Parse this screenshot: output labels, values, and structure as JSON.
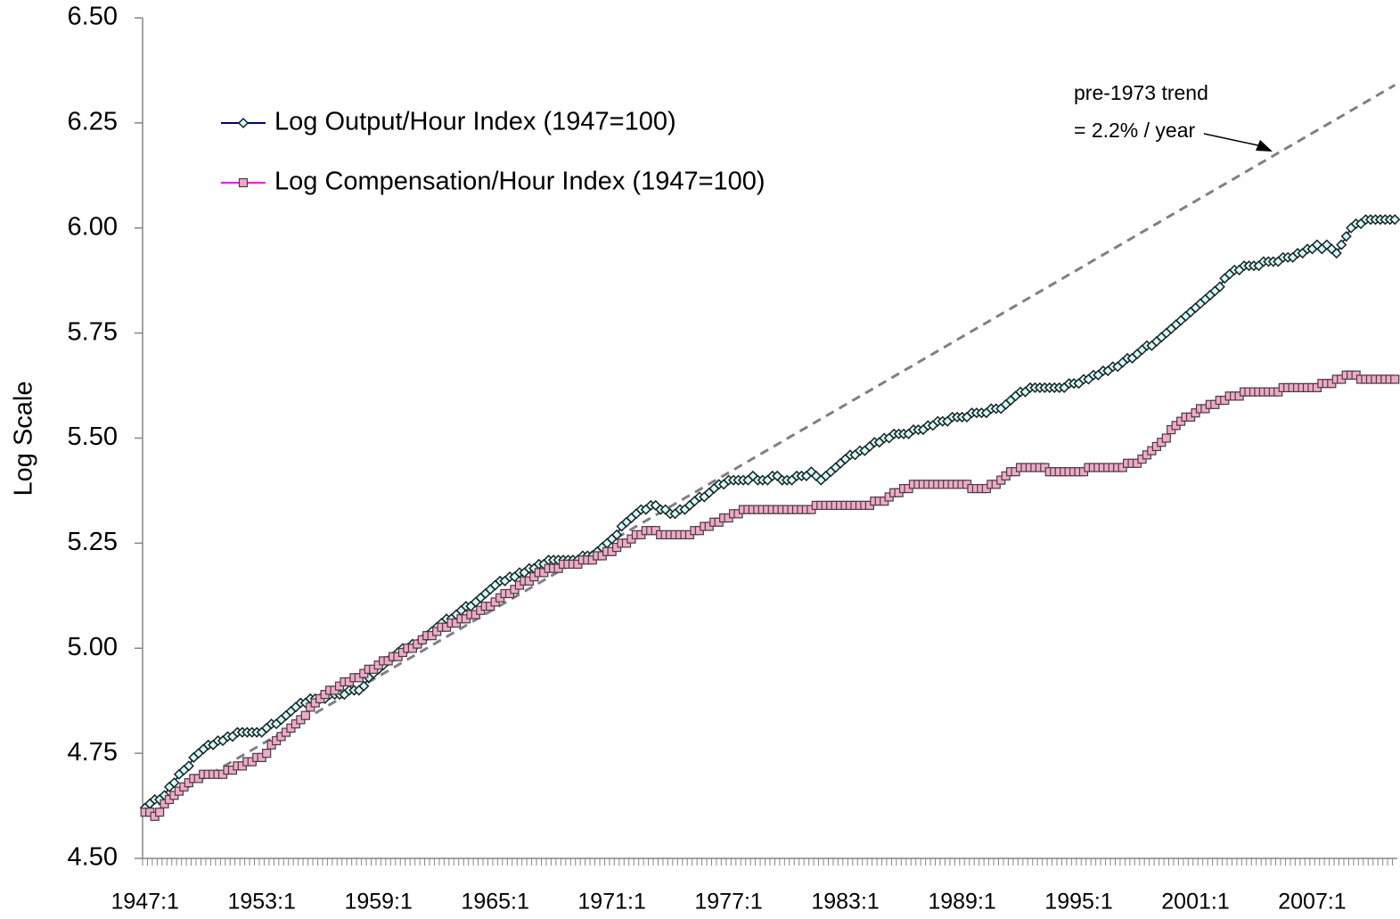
{
  "chart_data": {
    "type": "line",
    "y_axis_label": "Log Scale",
    "annotations": [
      "pre-1973 trend",
      "= 2.2% / year"
    ],
    "ylim": [
      4.5,
      6.5
    ],
    "yticks": [
      {
        "value": 4.5,
        "label": "4.50"
      },
      4.75,
      {
        "value": 5,
        "label": "5.00"
      },
      5.25,
      {
        "value": 5.5,
        "label": "5.50"
      },
      5.75,
      {
        "value": 6,
        "label": "6.00"
      },
      6.25,
      {
        "value": 6.5,
        "label": "6.50"
      }
    ],
    "grid": false,
    "legend": "top-left",
    "categories": [
      "1947:1",
      null,
      null,
      null,
      null,
      null,
      null,
      null,
      null,
      null,
      null,
      null,
      null,
      null,
      null,
      null,
      null,
      null,
      null,
      null,
      null,
      null,
      null,
      null,
      "1953:1",
      null,
      null,
      null,
      null,
      null,
      null,
      null,
      null,
      null,
      null,
      null,
      null,
      null,
      null,
      null,
      null,
      null,
      null,
      null,
      null,
      null,
      null,
      null,
      "1959:1",
      null,
      null,
      null,
      null,
      null,
      null,
      null,
      null,
      null,
      null,
      null,
      null,
      null,
      null,
      null,
      null,
      null,
      null,
      null,
      null,
      null,
      null,
      null,
      "1965:1",
      null,
      null,
      null,
      null,
      null,
      null,
      null,
      null,
      null,
      null,
      null,
      null,
      null,
      null,
      null,
      null,
      null,
      null,
      null,
      null,
      null,
      null,
      null,
      "1971:1",
      null,
      null,
      null,
      null,
      null,
      null,
      null,
      null,
      null,
      null,
      null,
      null,
      null,
      null,
      null,
      null,
      null,
      null,
      null,
      null,
      null,
      null,
      null,
      "1977:1",
      null,
      null,
      null,
      null,
      null,
      null,
      null,
      null,
      null,
      null,
      null,
      null,
      null,
      null,
      null,
      null,
      null,
      null,
      null,
      null,
      null,
      null,
      null,
      "1983:1",
      null,
      null,
      null,
      null,
      null,
      null,
      null,
      null,
      null,
      null,
      null,
      null,
      null,
      null,
      null,
      null,
      null,
      null,
      null,
      null,
      null,
      null,
      null,
      "1989:1",
      null,
      null,
      null,
      null,
      null,
      null,
      null,
      null,
      null,
      null,
      null,
      null,
      null,
      null,
      null,
      null,
      null,
      null,
      null,
      null,
      null,
      null,
      null,
      "1995:1",
      null,
      null,
      null,
      null,
      null,
      null,
      null,
      null,
      null,
      null,
      null,
      null,
      null,
      null,
      null,
      null,
      null,
      null,
      null,
      null,
      null,
      null,
      null,
      "2001:1",
      null,
      null,
      null,
      null,
      null,
      null,
      null,
      null,
      null,
      null,
      null,
      null,
      null,
      null,
      null,
      null,
      null,
      null,
      null,
      null,
      null,
      null,
      null,
      "2007:1",
      null,
      null,
      null,
      null,
      null,
      null,
      null,
      null,
      null,
      null,
      null,
      null,
      null,
      null,
      null,
      null,
      null
    ],
    "series": [
      {
        "name": "Log Output/Hour Index (1947=100)",
        "color": "#000080",
        "marker": "diamond",
        "marker_fill": "#ccffff",
        "values": [
          4.62,
          4.63,
          4.64,
          4.64,
          4.65,
          4.67,
          4.68,
          4.7,
          4.71,
          4.72,
          4.74,
          4.75,
          4.76,
          4.77,
          4.77,
          4.78,
          4.78,
          4.79,
          4.79,
          4.8,
          4.8,
          4.8,
          4.8,
          4.8,
          4.8,
          4.81,
          4.82,
          4.82,
          4.83,
          4.84,
          4.85,
          4.86,
          4.87,
          4.87,
          4.88,
          4.88,
          4.88,
          4.88,
          4.89,
          4.89,
          4.89,
          4.89,
          4.9,
          4.9,
          4.9,
          4.91,
          4.93,
          4.94,
          4.95,
          4.96,
          4.97,
          4.98,
          4.99,
          5.0,
          5.0,
          5.01,
          5.01,
          5.02,
          5.03,
          5.04,
          5.05,
          5.06,
          5.07,
          5.07,
          5.08,
          5.09,
          5.1,
          5.1,
          5.11,
          5.12,
          5.13,
          5.14,
          5.15,
          5.16,
          5.16,
          5.17,
          5.17,
          5.18,
          5.18,
          5.19,
          5.19,
          5.2,
          5.2,
          5.21,
          5.21,
          5.21,
          5.21,
          5.21,
          5.21,
          5.21,
          5.22,
          5.22,
          5.22,
          5.23,
          5.24,
          5.25,
          5.26,
          5.27,
          5.29,
          5.3,
          5.31,
          5.32,
          5.33,
          5.33,
          5.34,
          5.34,
          5.33,
          5.33,
          5.32,
          5.32,
          5.33,
          5.33,
          5.34,
          5.35,
          5.36,
          5.36,
          5.37,
          5.38,
          5.39,
          5.39,
          5.4,
          5.4,
          5.4,
          5.4,
          5.4,
          5.41,
          5.4,
          5.4,
          5.4,
          5.41,
          5.41,
          5.4,
          5.4,
          5.4,
          5.41,
          5.41,
          5.41,
          5.42,
          5.41,
          5.4,
          5.41,
          5.42,
          5.43,
          5.44,
          5.45,
          5.46,
          5.46,
          5.47,
          5.47,
          5.48,
          5.49,
          5.49,
          5.5,
          5.5,
          5.51,
          5.51,
          5.51,
          5.51,
          5.52,
          5.52,
          5.52,
          5.53,
          5.53,
          5.54,
          5.54,
          5.54,
          5.55,
          5.55,
          5.55,
          5.55,
          5.56,
          5.56,
          5.56,
          5.56,
          5.57,
          5.57,
          5.57,
          5.58,
          5.59,
          5.6,
          5.61,
          5.61,
          5.62,
          5.62,
          5.62,
          5.62,
          5.62,
          5.62,
          5.62,
          5.62,
          5.63,
          5.63,
          5.63,
          5.64,
          5.64,
          5.65,
          5.65,
          5.66,
          5.66,
          5.67,
          5.67,
          5.68,
          5.69,
          5.69,
          5.7,
          5.71,
          5.72,
          5.72,
          5.73,
          5.74,
          5.75,
          5.76,
          5.77,
          5.78,
          5.79,
          5.8,
          5.81,
          5.82,
          5.83,
          5.84,
          5.85,
          5.86,
          5.88,
          5.89,
          5.9,
          5.9,
          5.91,
          5.91,
          5.91,
          5.91,
          5.92,
          5.92,
          5.92,
          5.92,
          5.93,
          5.93,
          5.93,
          5.94,
          5.94,
          5.95,
          5.95,
          5.96,
          5.95,
          5.96,
          5.95,
          5.94,
          5.96,
          5.98,
          6.0,
          6.01,
          6.01,
          6.02,
          6.02,
          6.02,
          6.02,
          6.02,
          6.02,
          6.02
        ]
      },
      {
        "name": "Log Compensation/Hour Index (1947=100)",
        "color": "#ff00ff",
        "marker": "square",
        "marker_fill": "#f4a7c9",
        "values": [
          4.61,
          4.61,
          4.6,
          4.61,
          4.63,
          4.64,
          4.65,
          4.66,
          4.67,
          4.68,
          4.69,
          4.69,
          4.7,
          4.7,
          4.7,
          4.7,
          4.7,
          4.71,
          4.71,
          4.72,
          4.72,
          4.73,
          4.73,
          4.74,
          4.74,
          4.75,
          4.77,
          4.78,
          4.79,
          4.8,
          4.81,
          4.82,
          4.83,
          4.84,
          4.86,
          4.87,
          4.88,
          4.89,
          4.9,
          4.9,
          4.91,
          4.92,
          4.92,
          4.93,
          4.93,
          4.94,
          4.95,
          4.95,
          4.96,
          4.97,
          4.97,
          4.98,
          4.98,
          4.99,
          5.0,
          5.0,
          5.01,
          5.02,
          5.03,
          5.03,
          5.04,
          5.05,
          5.05,
          5.06,
          5.06,
          5.07,
          5.07,
          5.08,
          5.08,
          5.09,
          5.1,
          5.1,
          5.11,
          5.12,
          5.13,
          5.13,
          5.14,
          5.15,
          5.16,
          5.16,
          5.17,
          5.18,
          5.18,
          5.19,
          5.19,
          5.19,
          5.2,
          5.2,
          5.2,
          5.2,
          5.21,
          5.21,
          5.21,
          5.22,
          5.22,
          5.23,
          5.23,
          5.24,
          5.25,
          5.25,
          5.26,
          5.27,
          5.27,
          5.28,
          5.28,
          5.28,
          5.27,
          5.27,
          5.27,
          5.27,
          5.27,
          5.27,
          5.27,
          5.28,
          5.28,
          5.29,
          5.29,
          5.3,
          5.3,
          5.31,
          5.31,
          5.32,
          5.32,
          5.33,
          5.33,
          5.33,
          5.33,
          5.33,
          5.33,
          5.33,
          5.33,
          5.33,
          5.33,
          5.33,
          5.33,
          5.33,
          5.33,
          5.33,
          5.34,
          5.34,
          5.34,
          5.34,
          5.34,
          5.34,
          5.34,
          5.34,
          5.34,
          5.34,
          5.34,
          5.34,
          5.35,
          5.35,
          5.35,
          5.36,
          5.37,
          5.37,
          5.38,
          5.38,
          5.39,
          5.39,
          5.39,
          5.39,
          5.39,
          5.39,
          5.39,
          5.39,
          5.39,
          5.39,
          5.39,
          5.39,
          5.38,
          5.38,
          5.38,
          5.38,
          5.39,
          5.39,
          5.4,
          5.41,
          5.42,
          5.42,
          5.43,
          5.43,
          5.43,
          5.43,
          5.43,
          5.43,
          5.42,
          5.42,
          5.42,
          5.42,
          5.42,
          5.42,
          5.42,
          5.42,
          5.43,
          5.43,
          5.43,
          5.43,
          5.43,
          5.43,
          5.43,
          5.43,
          5.44,
          5.44,
          5.44,
          5.45,
          5.46,
          5.47,
          5.48,
          5.49,
          5.5,
          5.52,
          5.53,
          5.54,
          5.55,
          5.55,
          5.56,
          5.57,
          5.57,
          5.58,
          5.58,
          5.59,
          5.59,
          5.6,
          5.6,
          5.6,
          5.61,
          5.61,
          5.61,
          5.61,
          5.61,
          5.61,
          5.61,
          5.61,
          5.62,
          5.62,
          5.62,
          5.62,
          5.62,
          5.62,
          5.62,
          5.62,
          5.63,
          5.63,
          5.63,
          5.64,
          5.64,
          5.65,
          5.65,
          5.65,
          5.64,
          5.64,
          5.64,
          5.64,
          5.64,
          5.64,
          5.64,
          5.64
        ]
      }
    ],
    "trend": {
      "values": [
        4.61,
        6.34
      ],
      "color": "#808080",
      "dashed": true
    }
  }
}
